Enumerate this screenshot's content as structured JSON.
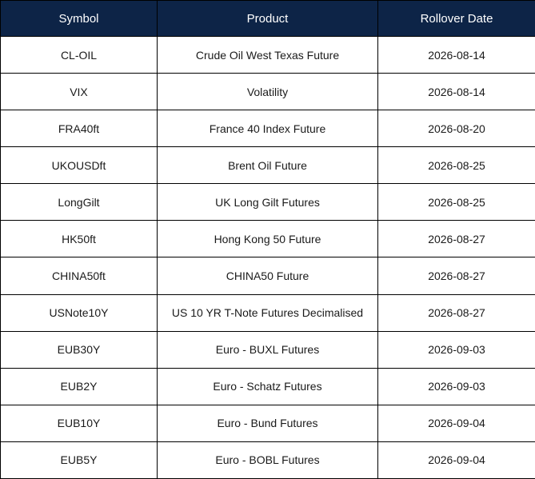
{
  "table": {
    "columns": [
      "Symbol",
      "Product",
      "Rollover Date"
    ],
    "rows": [
      [
        "CL-OIL",
        "Crude Oil West Texas Future",
        "2026-08-14"
      ],
      [
        "VIX",
        "Volatility",
        "2026-08-14"
      ],
      [
        "FRA40ft",
        "France 40 Index Future",
        "2026-08-20"
      ],
      [
        "UKOUSDft",
        "Brent Oil Future",
        "2026-08-25"
      ],
      [
        "LongGilt",
        "UK Long Gilt Futures",
        "2026-08-25"
      ],
      [
        "HK50ft",
        "Hong Kong 50 Future",
        "2026-08-27"
      ],
      [
        "CHINA50ft",
        "CHINA50 Future",
        "2026-08-27"
      ],
      [
        "USNote10Y",
        "US 10 YR T-Note Futures Decimalised",
        "2026-08-27"
      ],
      [
        "EUB30Y",
        "Euro - BUXL Futures",
        "2026-09-03"
      ],
      [
        "EUB2Y",
        "Euro - Schatz Futures",
        "2026-09-03"
      ],
      [
        "EUB10Y",
        "Euro - Bund Futures",
        "2026-09-04"
      ],
      [
        "EUB5Y",
        "Euro - BOBL Futures",
        "2026-09-04"
      ]
    ]
  }
}
